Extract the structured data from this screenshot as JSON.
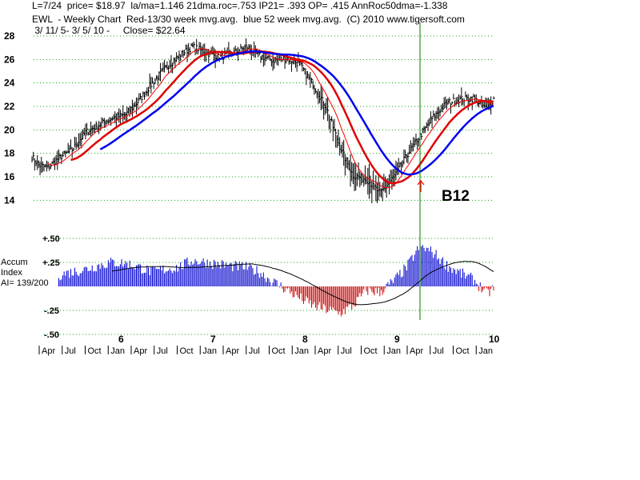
{
  "header": {
    "line1": "L=7/24  price= $18.97  la/ma=1.146 21dma.roc=.753 IP21= .393 OP= .415 AnnRoc50dma=-1.338",
    "line2": "EWL  - Weekly Chart  Red-13/30 week mvg.avg.  blue 52 week mvg.avg.  (C) 2010 www.tigersoft.com",
    "line3": " 3/ 11/ 5- 3/ 5/ 10 -     Close= $22.64"
  },
  "signal": {
    "label": "B12"
  },
  "accum": {
    "title_line1": "Accum",
    "title_line2": "Index",
    "ai_text": "AI= 139/200",
    "ticks": [
      "+.50",
      "+.25",
      "-.25",
      "-.50"
    ]
  },
  "colors": {
    "price": "#000000",
    "ma13": "#ff0000",
    "ma30": "#e00000",
    "ma52": "#0000ee",
    "signal": "#007700",
    "grid": "#00aa00",
    "accum_pos": "#0000cc",
    "accum_neg": "#cc0000"
  },
  "chart_data": {
    "type": "line",
    "y_ticks": [
      "28",
      "26",
      "24",
      "22",
      "20",
      "18",
      "16",
      "14"
    ],
    "ylim": [
      13,
      28.5
    ],
    "x_years": [
      "6",
      "7",
      "8",
      "9",
      "10"
    ],
    "x_months": [
      "Apr",
      "Jul",
      "Oct",
      "Jan",
      "Apr",
      "Jul",
      "Oct",
      "Jan",
      "Apr",
      "Jul",
      "Oct",
      "Jan",
      "Apr",
      "Jul",
      "Oct",
      "Jan",
      "Apr",
      "Jul",
      "Oct",
      "Jan"
    ],
    "price_anchors": [
      [
        0,
        17.7
      ],
      [
        5,
        17.0
      ],
      [
        12,
        16.8
      ],
      [
        20,
        17.6
      ],
      [
        30,
        18.3
      ],
      [
        40,
        19.8
      ],
      [
        50,
        20.4
      ],
      [
        60,
        21.0
      ],
      [
        70,
        21.3
      ],
      [
        80,
        22.5
      ],
      [
        90,
        24.0
      ],
      [
        100,
        25.3
      ],
      [
        110,
        26.3
      ],
      [
        120,
        27.1
      ],
      [
        130,
        26.6
      ],
      [
        140,
        26.2
      ],
      [
        150,
        26.5
      ],
      [
        160,
        27.1
      ],
      [
        170,
        26.3
      ],
      [
        180,
        25.9
      ],
      [
        190,
        26.1
      ],
      [
        200,
        25.6
      ],
      [
        210,
        23.9
      ],
      [
        220,
        21.9
      ],
      [
        230,
        18.6
      ],
      [
        240,
        16.1
      ],
      [
        250,
        15.8
      ],
      [
        260,
        14.6
      ],
      [
        270,
        15.9
      ],
      [
        280,
        17.8
      ],
      [
        290,
        19.5
      ],
      [
        300,
        21.1
      ],
      [
        310,
        22.3
      ],
      [
        320,
        22.6
      ],
      [
        330,
        22.7
      ],
      [
        340,
        21.8
      ],
      [
        345,
        22.64
      ]
    ],
    "accum_anchors": [
      [
        0,
        0.05
      ],
      [
        10,
        0.08
      ],
      [
        20,
        0.12
      ],
      [
        30,
        0.15
      ],
      [
        40,
        0.18
      ],
      [
        50,
        0.22
      ],
      [
        60,
        0.25
      ],
      [
        70,
        0.24
      ],
      [
        80,
        0.2
      ],
      [
        90,
        0.15
      ],
      [
        100,
        0.18
      ],
      [
        110,
        0.2
      ],
      [
        120,
        0.27
      ],
      [
        130,
        0.25
      ],
      [
        140,
        0.23
      ],
      [
        150,
        0.21
      ],
      [
        160,
        0.2
      ],
      [
        170,
        0.15
      ],
      [
        180,
        0.05
      ],
      [
        190,
        -0.03
      ],
      [
        200,
        -0.12
      ],
      [
        210,
        -0.2
      ],
      [
        220,
        -0.24
      ],
      [
        230,
        -0.28
      ],
      [
        240,
        -0.2
      ],
      [
        250,
        -0.04
      ],
      [
        260,
        -0.06
      ],
      [
        270,
        0.05
      ],
      [
        280,
        0.2
      ],
      [
        290,
        0.42
      ],
      [
        300,
        0.35
      ],
      [
        310,
        0.22
      ],
      [
        320,
        0.14
      ],
      [
        330,
        0.07
      ],
      [
        340,
        -0.08
      ],
      [
        345,
        -0.02
      ]
    ],
    "accum_ylim": [
      -0.5,
      0.5
    ],
    "signal_week": 290
  }
}
